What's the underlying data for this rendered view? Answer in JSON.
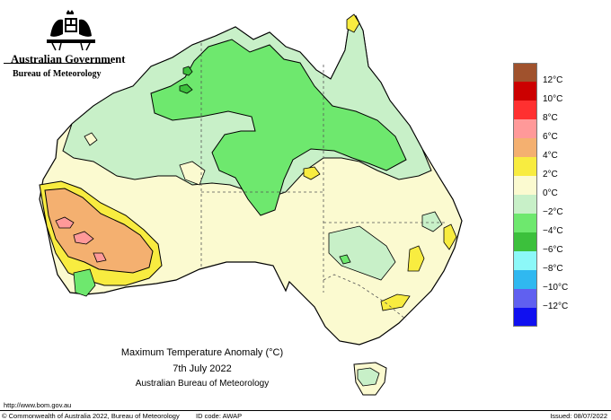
{
  "branding": {
    "government": "Australian Government",
    "bureau": "Bureau of Meteorology"
  },
  "map": {
    "title": "Maximum Temperature Anomaly (°C)",
    "date": "7th July 2022",
    "organisation": "Australian Bureau of Meteorology"
  },
  "legend": {
    "items": [
      {
        "label": "12°C",
        "color": "#a0522d"
      },
      {
        "label": "10°C",
        "color": "#cc0000"
      },
      {
        "label": "8°C",
        "color": "#ff3030"
      },
      {
        "label": "6°C",
        "color": "#ff9999"
      },
      {
        "label": "4°C",
        "color": "#f4b070"
      },
      {
        "label": "2°C",
        "color": "#f8ec40"
      },
      {
        "label": "0°C",
        "color": "#fbfad0"
      },
      {
        "label": "−2°C",
        "color": "#c8f0c8"
      },
      {
        "label": "−4°C",
        "color": "#6ee86e"
      },
      {
        "label": "−6°C",
        "color": "#3cc03c"
      },
      {
        "label": "−8°C",
        "color": "#8cf8f8"
      },
      {
        "label": "−10°C",
        "color": "#30b8f0"
      },
      {
        "label": "−12°C",
        "color": "#6060f0"
      },
      {
        "label": "",
        "color": "#1010f0"
      }
    ]
  },
  "footer": {
    "url": "http://www.bom.gov.au",
    "copyright": "© Commonwealth of Australia 2022, Bureau of Meteorology",
    "id_code": "ID code: AWAP",
    "issued": "Issued: 08/07/2022"
  }
}
